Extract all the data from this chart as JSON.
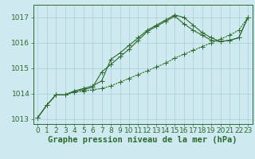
{
  "background_color": "#ceeaf0",
  "grid_color": "#aed4dc",
  "line_color": "#2d6a2d",
  "xlabel": "Graphe pression niveau de la mer (hPa)",
  "xlabel_fontsize": 7.5,
  "tick_fontsize": 6.5,
  "xlim": [
    -0.5,
    23.5
  ],
  "ylim": [
    1012.8,
    1017.5
  ],
  "yticks": [
    1013,
    1014,
    1015,
    1016,
    1017
  ],
  "xticks": [
    0,
    1,
    2,
    3,
    4,
    5,
    6,
    7,
    8,
    9,
    10,
    11,
    12,
    13,
    14,
    15,
    16,
    17,
    18,
    19,
    20,
    21,
    22,
    23
  ],
  "s1_x": [
    0,
    1,
    2,
    3,
    4,
    5,
    6,
    7,
    8,
    9,
    10,
    11,
    12,
    13,
    14,
    15,
    16,
    17,
    18,
    19,
    20,
    21,
    22,
    23
  ],
  "s1_y": [
    1013.05,
    1013.55,
    1013.95,
    1013.95,
    1014.05,
    1014.1,
    1014.15,
    1014.2,
    1014.3,
    1014.45,
    1014.6,
    1014.75,
    1014.9,
    1015.05,
    1015.2,
    1015.4,
    1015.55,
    1015.7,
    1015.85,
    1016.0,
    1016.15,
    1016.3,
    1016.5,
    1017.0
  ],
  "s2_x": [
    0,
    1,
    2,
    3,
    4,
    5,
    6,
    7,
    8,
    9,
    10,
    11,
    12,
    13,
    14,
    15,
    16,
    17,
    18,
    19,
    20,
    21,
    22,
    23
  ],
  "s2_y": [
    1013.05,
    1013.55,
    1013.95,
    1013.95,
    1014.1,
    1014.15,
    1014.25,
    1014.85,
    1015.15,
    1015.45,
    1015.75,
    1016.1,
    1016.45,
    1016.65,
    1016.85,
    1017.05,
    1016.75,
    1016.5,
    1016.3,
    1016.1,
    1016.05,
    1016.1,
    1016.2,
    1017.0
  ],
  "s3_x": [
    0,
    1,
    2,
    3,
    4,
    5,
    6,
    7,
    8,
    9,
    10,
    11,
    12,
    13,
    14,
    15,
    16,
    17,
    18,
    19,
    20,
    21,
    22,
    23
  ],
  "s3_y": [
    1013.05,
    1013.55,
    1013.95,
    1013.95,
    1014.1,
    1014.2,
    1014.3,
    1014.5,
    1015.35,
    1015.6,
    1015.9,
    1016.2,
    1016.5,
    1016.7,
    1016.9,
    1017.1,
    1017.0,
    1016.7,
    1016.4,
    1016.2,
    1016.05,
    1016.1,
    1016.2,
    1017.0
  ]
}
